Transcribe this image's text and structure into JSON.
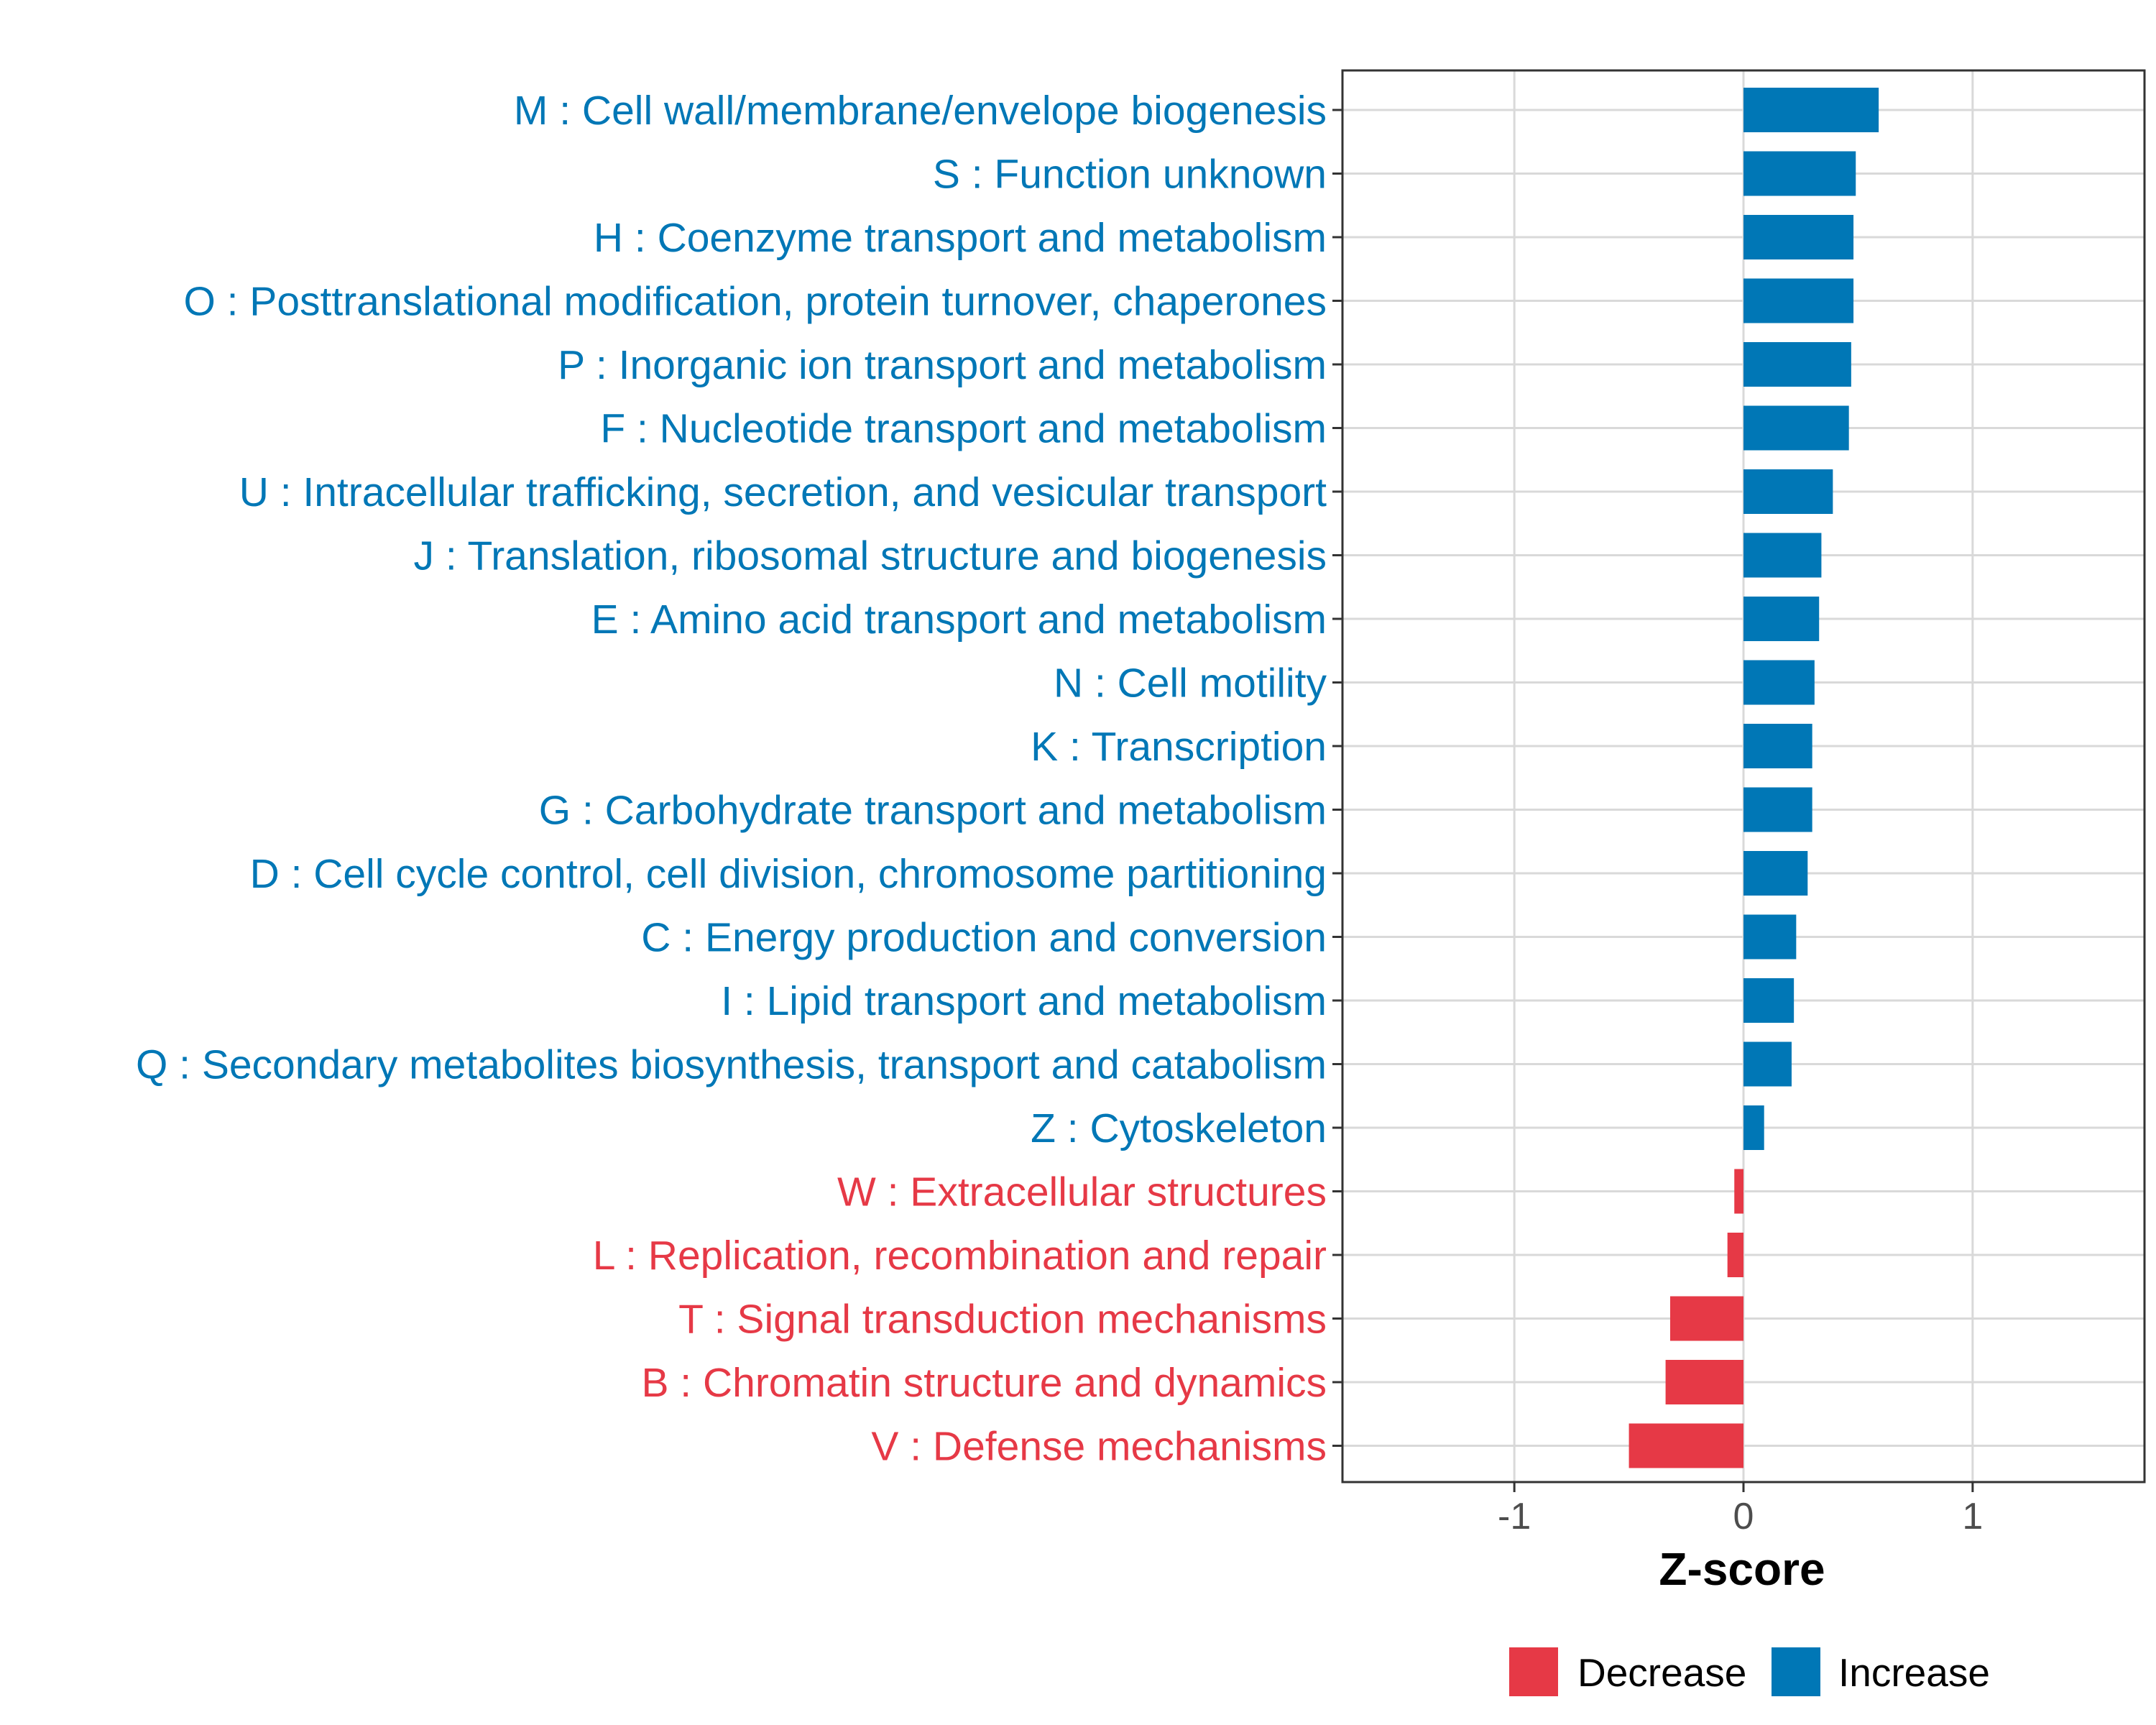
{
  "chart_data": {
    "type": "bar",
    "orientation": "horizontal",
    "title": "",
    "xlabel": "Z-score",
    "ylabel": "",
    "xlim": [
      -1.75,
      1.75
    ],
    "xticks": [
      -1,
      0,
      1
    ],
    "xtick_labels": [
      "-1",
      "0",
      "1"
    ],
    "grid": true,
    "legend_position": "bottom",
    "colors": {
      "Increase": "#0077b6",
      "Decrease": "#e63946"
    },
    "categories": [
      "M : Cell wall/membrane/envelope biogenesis",
      "S : Function unknown",
      "H : Coenzyme transport and metabolism",
      "O : Posttranslational modification, protein turnover, chaperones",
      "P : Inorganic ion transport and metabolism",
      "F : Nucleotide transport and metabolism",
      "U : Intracellular trafficking, secretion, and vesicular transport",
      "J : Translation, ribosomal structure and biogenesis",
      "E : Amino acid transport and metabolism",
      "N : Cell motility",
      "K : Transcription",
      "G : Carbohydrate transport and metabolism",
      "D : Cell cycle control, cell division, chromosome partitioning",
      "C : Energy production and conversion",
      "I : Lipid transport and metabolism",
      "Q : Secondary metabolites biosynthesis, transport and catabolism",
      "Z : Cytoskeleton",
      "W : Extracellular structures",
      "L : Replication, recombination and repair",
      "T : Signal transduction mechanisms",
      "B : Chromatin structure and dynamics",
      "V : Defense mechanisms"
    ],
    "values": [
      0.59,
      0.49,
      0.48,
      0.48,
      0.47,
      0.46,
      0.39,
      0.34,
      0.33,
      0.31,
      0.3,
      0.3,
      0.28,
      0.23,
      0.22,
      0.21,
      0.09,
      -0.04,
      -0.07,
      -0.32,
      -0.34,
      -0.5
    ],
    "groups": [
      "Increase",
      "Increase",
      "Increase",
      "Increase",
      "Increase",
      "Increase",
      "Increase",
      "Increase",
      "Increase",
      "Increase",
      "Increase",
      "Increase",
      "Increase",
      "Increase",
      "Increase",
      "Increase",
      "Increase",
      "Decrease",
      "Decrease",
      "Decrease",
      "Decrease",
      "Decrease"
    ],
    "legend": [
      {
        "label": "Decrease",
        "color": "#e63946"
      },
      {
        "label": "Increase",
        "color": "#0077b6"
      }
    ]
  }
}
